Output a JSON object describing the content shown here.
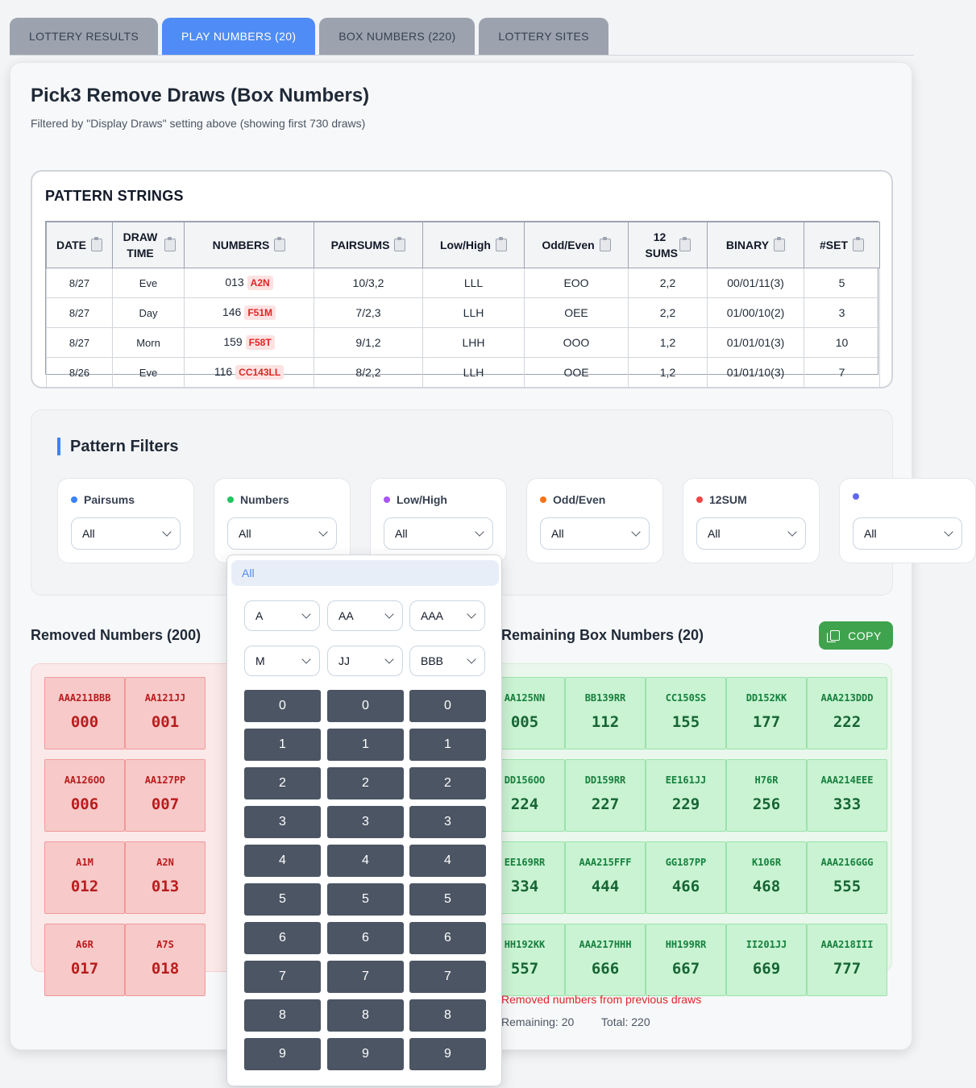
{
  "tabs": [
    {
      "label": "LOTTERY RESULTS",
      "active": false
    },
    {
      "label": "PLAY NUMBERS (20)",
      "active": true
    },
    {
      "label": "BOX NUMBERS (220)",
      "active": false
    },
    {
      "label": "LOTTERY SITES",
      "active": false
    }
  ],
  "page": {
    "title": "Pick3 Remove Draws (Box Numbers)",
    "subtitle": "Filtered by \"Display Draws\" setting above (showing first 730 draws)"
  },
  "pattern_strings": {
    "title": "PATTERN STRINGS",
    "headers": [
      "DATE",
      "DRAW TIME",
      "NUMBERS",
      "PAIRSUMS",
      "Low/High",
      "Odd/Even",
      "12 SUMS",
      "BINARY",
      "#SET"
    ],
    "rows": [
      {
        "date": "8/27",
        "time": "Eve",
        "num": "013",
        "pat": "A2N",
        "pairsums": "10/3,2",
        "lowhigh": "LLL",
        "oddeven": "EOO",
        "sums12": "2,2",
        "binary": "00/01/11(3)",
        "set": "5"
      },
      {
        "date": "8/27",
        "time": "Day",
        "num": "146",
        "pat": "F51M",
        "pairsums": "7/2,3",
        "lowhigh": "LLH",
        "oddeven": "OEE",
        "sums12": "2,2",
        "binary": "01/00/10(2)",
        "set": "3"
      },
      {
        "date": "8/27",
        "time": "Morn",
        "num": "159",
        "pat": "F58T",
        "pairsums": "9/1,2",
        "lowhigh": "LHH",
        "oddeven": "OOO",
        "sums12": "1,2",
        "binary": "01/01/01(3)",
        "set": "10"
      },
      {
        "date": "8/26",
        "time": "Eve",
        "num": "116",
        "pat": "CC143LL",
        "pairsums": "8/2,2",
        "lowhigh": "LLH",
        "oddeven": "OOE",
        "sums12": "1,2",
        "binary": "01/01/10(3)",
        "set": "7"
      }
    ]
  },
  "pattern_filters": {
    "title": "Pattern Filters",
    "filters": [
      {
        "label": "Pairsums",
        "value": "All",
        "color": "#3b82f6"
      },
      {
        "label": "Numbers",
        "value": "All",
        "color": "#22c55e"
      },
      {
        "label": "Low/High",
        "value": "All",
        "color": "#a855f7"
      },
      {
        "label": "Odd/Even",
        "value": "All",
        "color": "#f97316"
      },
      {
        "label": "12SUM",
        "value": "All",
        "color": "#ef4444"
      },
      {
        "label": "",
        "value": "All",
        "color": "#6366f1"
      }
    ]
  },
  "dropdown": {
    "selected": "All",
    "selects_row1": [
      "A",
      "AA",
      "AAA"
    ],
    "selects_row2": [
      "M",
      "JJ",
      "BBB"
    ],
    "keys": [
      "0",
      "1",
      "2",
      "3",
      "4",
      "5",
      "6",
      "7",
      "8",
      "9"
    ]
  },
  "removed": {
    "title": "Removed Numbers (200)",
    "cells": [
      {
        "pat": "AAA211BBB",
        "num": "000"
      },
      {
        "pat": "AA121JJ",
        "num": "001"
      },
      {
        "pat": "AA126OO",
        "num": "006"
      },
      {
        "pat": "AA127PP",
        "num": "007"
      },
      {
        "pat": "A1M",
        "num": "012"
      },
      {
        "pat": "A2N",
        "num": "013"
      },
      {
        "pat": "A6R",
        "num": "017"
      },
      {
        "pat": "A7S",
        "num": "018"
      }
    ]
  },
  "remaining": {
    "title": "Remaining Box Numbers (20)",
    "copy_label": "COPY",
    "cells": [
      {
        "pat": "AA125NN",
        "num": "005"
      },
      {
        "pat": "BB139RR",
        "num": "112"
      },
      {
        "pat": "CC150SS",
        "num": "155"
      },
      {
        "pat": "DD152KK",
        "num": "177"
      },
      {
        "pat": "AAA213DDD",
        "num": "222"
      },
      {
        "pat": "DD156OO",
        "num": "224"
      },
      {
        "pat": "DD159RR",
        "num": "227"
      },
      {
        "pat": "EE161JJ",
        "num": "229"
      },
      {
        "pat": "H76R",
        "num": "256"
      },
      {
        "pat": "AAA214EEE",
        "num": "333"
      },
      {
        "pat": "EE169RR",
        "num": "334"
      },
      {
        "pat": "AAA215FFF",
        "num": "444"
      },
      {
        "pat": "GG187PP",
        "num": "466"
      },
      {
        "pat": "K106R",
        "num": "468"
      },
      {
        "pat": "AAA216GGG",
        "num": "555"
      },
      {
        "pat": "HH192KK",
        "num": "557"
      },
      {
        "pat": "AAA217HHH",
        "num": "666"
      },
      {
        "pat": "HH199RR",
        "num": "667"
      },
      {
        "pat": "II201JJ",
        "num": "669"
      },
      {
        "pat": "AAA218III",
        "num": "777"
      }
    ],
    "note": "Removed numbers from previous draws",
    "stat_a": "Remaining: 20",
    "stat_total": "Total: 220"
  }
}
